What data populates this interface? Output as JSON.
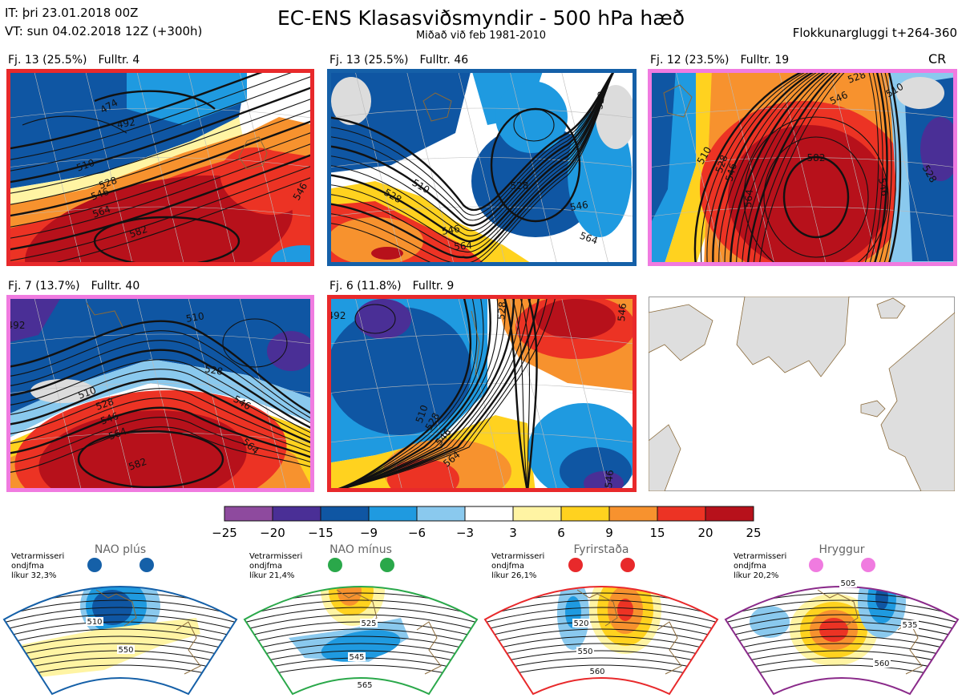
{
  "header": {
    "it_line": "IT: þri 23.01.2018 00Z",
    "vt_line": "VT: sun 04.02.2018 12Z  (+300h)",
    "title": "EC-ENS Klasasviðsmyndir - 500 hPa hæð",
    "subtitle": "Miðað við feb 1981-2010",
    "window": "Flokkunargluggi t+264-360",
    "cr": "CR"
  },
  "panels": [
    {
      "freq": "Fj. 13 (25.5%)",
      "rep": "Fulltr. 4",
      "border": "#e8292b",
      "contour_labels": [
        "474",
        "492",
        "510",
        "528",
        "546",
        "564",
        "582",
        "546"
      ]
    },
    {
      "freq": "Fj. 13 (25.5%)",
      "rep": "Fulltr. 46",
      "border": "#1560a8",
      "contour_labels": [
        "510",
        "528",
        "546",
        "564",
        "564",
        "528",
        "546",
        "528"
      ]
    },
    {
      "freq": "Fj. 12 (23.5%)",
      "rep": "Fulltr. 19",
      "border": "#f07be0",
      "contour_labels": [
        "528",
        "546",
        "510",
        "528",
        "546",
        "564",
        "582",
        "546",
        "528",
        "510"
      ]
    },
    {
      "freq": "Fj. 7 (13.7%)",
      "rep": "Fulltr. 40",
      "border": "#f07be0",
      "contour_labels": [
        "492",
        "510",
        "528",
        "510",
        "528",
        "546",
        "564",
        "582",
        "546",
        "564"
      ]
    },
    {
      "freq": "Fj. 6 (11.8%)",
      "rep": "Fulltr. 9",
      "border": "#e8292b",
      "contour_labels": [
        "492",
        "528",
        "510",
        "528",
        "546",
        "564",
        "546",
        "546"
      ]
    }
  ],
  "colorbar": {
    "ticks": [
      "-25",
      "-20",
      "-15",
      "-9",
      "-6",
      "-3",
      "3",
      "6",
      "9",
      "15",
      "20",
      "25"
    ],
    "colors": [
      "#8e4a9e",
      "#4a2f96",
      "#0f56a3",
      "#1f9ae0",
      "#8ac9ee",
      "#ffffff",
      "#fff4a3",
      "#ffd21f",
      "#f7922e",
      "#ec3324",
      "#b7111b"
    ]
  },
  "regimes": [
    {
      "name": "NAO plús",
      "note": [
        "Vetrarmisseri",
        "ondjfma",
        "líkur 32,3%"
      ],
      "dot_color": "#1560a8",
      "border": "#1560a8",
      "labels": [
        "510",
        "550"
      ]
    },
    {
      "name": "NAO mínus",
      "note": [
        "Vetrarmisseri",
        "ondjfma",
        "líkur 21,4%"
      ],
      "dot_color": "#2aa84a",
      "border": "#2aa84a",
      "labels": [
        "525",
        "545",
        "565"
      ]
    },
    {
      "name": "Fyrirstaða",
      "note": [
        "Vetrarmisseri",
        "ondjfma",
        "líkur 26,1%"
      ],
      "dot_color": "#e8292b",
      "border": "#e8292b",
      "labels": [
        "520",
        "550",
        "560"
      ]
    },
    {
      "name": "Hryggur",
      "note": [
        "Vetrarmisseri",
        "ondjfma",
        "líkur 20,2%"
      ],
      "dot_color": "#f07be0",
      "border": "#8a2a8a",
      "labels": [
        "505",
        "535",
        "560"
      ]
    }
  ],
  "chart_data": {
    "type": "heatmap",
    "title": "EC-ENS Klasasviðsmyndir - 500 hPa hæð",
    "subtitle": "Miðað við feb 1981-2010",
    "clusters": [
      {
        "name": "Fj. 13",
        "frequency_pct": 25.5,
        "representative": 4
      },
      {
        "name": "Fj. 13",
        "frequency_pct": 25.5,
        "representative": 46
      },
      {
        "name": "Fj. 12",
        "frequency_pct": 23.5,
        "representative": 19
      },
      {
        "name": "Fj. 7",
        "frequency_pct": 13.7,
        "representative": 40
      },
      {
        "name": "Fj. 6",
        "frequency_pct": 11.8,
        "representative": 9
      }
    ],
    "colorbar_levels": [
      -25,
      -20,
      -15,
      -9,
      -6,
      -3,
      3,
      6,
      9,
      15,
      20,
      25
    ],
    "regimes": [
      {
        "name": "NAO plús",
        "probability_pct": 32.3
      },
      {
        "name": "NAO mínus",
        "probability_pct": 21.4
      },
      {
        "name": "Fyrirstaða",
        "probability_pct": 26.1
      },
      {
        "name": "Hryggur",
        "probability_pct": 20.2
      }
    ]
  }
}
